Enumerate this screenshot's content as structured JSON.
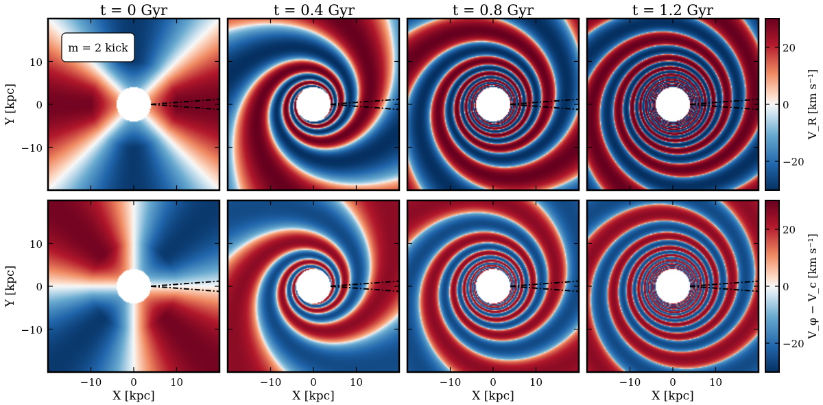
{
  "chart_data": {
    "type": "heatmap",
    "panel_titles": [
      "t = 0 Gyr",
      "t = 0.4 Gyr",
      "t = 0.8 Gyr",
      "t = 1.2 Gyr"
    ],
    "annotation": "m = 2 kick",
    "xlabel": "X [kpc]",
    "ylabel": "Y [kpc]",
    "xlim": [
      -20,
      20
    ],
    "ylim": [
      -20,
      20
    ],
    "x_ticks": [
      -10,
      0,
      10
    ],
    "y_ticks": [
      10,
      0,
      -10
    ],
    "x_tick_labels": [
      "−10",
      "0",
      "10"
    ],
    "y_tick_labels": [
      "10",
      "0",
      "−10"
    ],
    "times_gyr": [
      0,
      0.4,
      0.8,
      1.2
    ],
    "rows": [
      {
        "quantity": "V_R",
        "colorbar_label": "V_R [km s⁻¹]"
      },
      {
        "quantity": "V_phi - V_c",
        "colorbar_label": "V_φ − V_c [km s⁻¹]"
      }
    ],
    "colorbar": {
      "range": [
        -30,
        30
      ],
      "ticks": [
        20,
        0,
        -20
      ],
      "tick_labels": [
        "20",
        "0",
        "−20"
      ],
      "colormap": "RdBu_r"
    },
    "central_hole_radius_kpc": 4,
    "wedge_lines": "dash-dot lines from (4,0) to the right edge, opening ~±3°",
    "colors": {
      "red": "#a50026",
      "white": "#f7f7f7",
      "blue": "#053061"
    }
  }
}
